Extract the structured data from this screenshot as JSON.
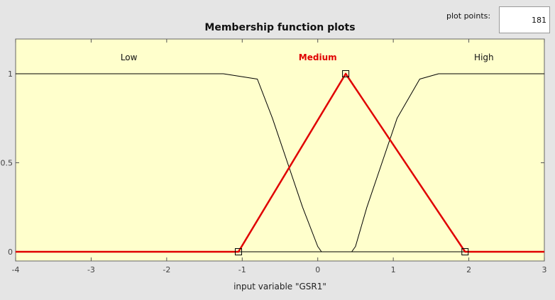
{
  "controls": {
    "plot_points_label": "plot points:",
    "plot_points_value": "181"
  },
  "chart_data": {
    "type": "line",
    "title": "Membership function plots",
    "xlabel": "input variable \"GSR1\"",
    "xlim": [
      -4,
      3
    ],
    "ylim": [
      0,
      1.2
    ],
    "x_ticks": [
      "-4",
      "-3",
      "-2",
      "-1",
      "0",
      "1",
      "2",
      "3"
    ],
    "y_ticks": [
      "0",
      "0.5",
      "1"
    ],
    "grid": false,
    "series": [
      {
        "name": "Low",
        "color": "#000000",
        "selected": false,
        "label_x": -2.5,
        "x": [
          -4,
          -1.25,
          -0.8,
          -0.6,
          -0.2,
          0.0,
          0.05,
          3
        ],
        "y": [
          1,
          1,
          0.97,
          0.75,
          0.25,
          0.03,
          0,
          0
        ]
      },
      {
        "name": "Medium",
        "color": "#e00000",
        "selected": true,
        "label_x": 0.0,
        "x": [
          -4,
          -1.05,
          0.37,
          1.95,
          3
        ],
        "y": [
          0,
          0,
          1,
          0,
          0
        ],
        "vertices": [
          [
            -1.05,
            0
          ],
          [
            0.37,
            1
          ],
          [
            1.95,
            0
          ]
        ]
      },
      {
        "name": "High",
        "color": "#000000",
        "selected": false,
        "label_x": 2.2,
        "x": [
          -4,
          0.45,
          0.5,
          0.65,
          1.05,
          1.35,
          1.6,
          3
        ],
        "y": [
          0,
          0,
          0.03,
          0.25,
          0.75,
          0.97,
          1,
          1
        ]
      }
    ]
  }
}
